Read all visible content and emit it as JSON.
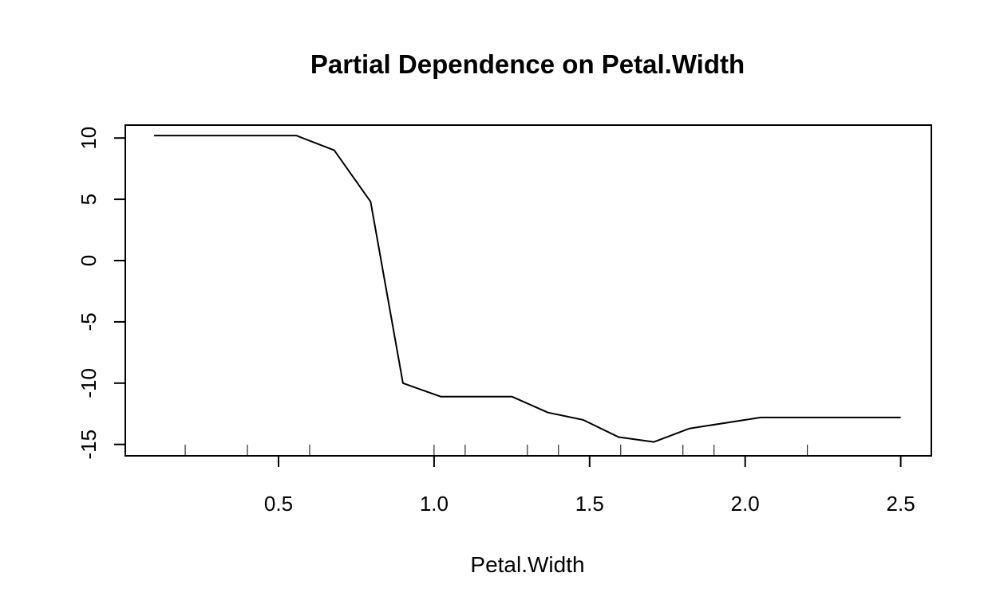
{
  "chart_data": {
    "type": "line",
    "title": "Partial Dependence on Petal.Width",
    "xlabel": "Petal.Width",
    "ylabel": "",
    "xlim": [
      0.1,
      2.5
    ],
    "ylim": [
      -15,
      10
    ],
    "x_ticks": [
      0.5,
      1.0,
      1.5,
      2.0,
      2.5
    ],
    "x_tick_labels": [
      "0.5",
      "1.0",
      "1.5",
      "2.0",
      "2.5"
    ],
    "y_ticks": [
      -15,
      -10,
      -5,
      0,
      5,
      10
    ],
    "y_tick_labels": [
      "-15",
      "-10",
      "-5",
      "0",
      "5",
      "10"
    ],
    "rug": [
      0.2,
      0.4,
      0.6,
      1.0,
      1.1,
      1.3,
      1.4,
      1.6,
      1.8,
      1.9,
      2.2
    ],
    "grid": false,
    "legend": "none",
    "colors": {
      "line": "#000000",
      "axes": "#000000",
      "background": "#ffffff"
    },
    "series": [
      {
        "x": [
          0.1,
          0.557,
          0.679,
          0.796,
          0.9,
          1.021,
          1.25,
          1.366,
          1.479,
          1.593,
          1.707,
          1.821,
          2.05,
          2.5
        ],
        "values": [
          10.2,
          10.2,
          9.0,
          4.8,
          -10.0,
          -11.1,
          -11.1,
          -12.4,
          -13.0,
          -14.4,
          -14.8,
          -13.7,
          -12.8,
          -12.8
        ]
      }
    ]
  }
}
